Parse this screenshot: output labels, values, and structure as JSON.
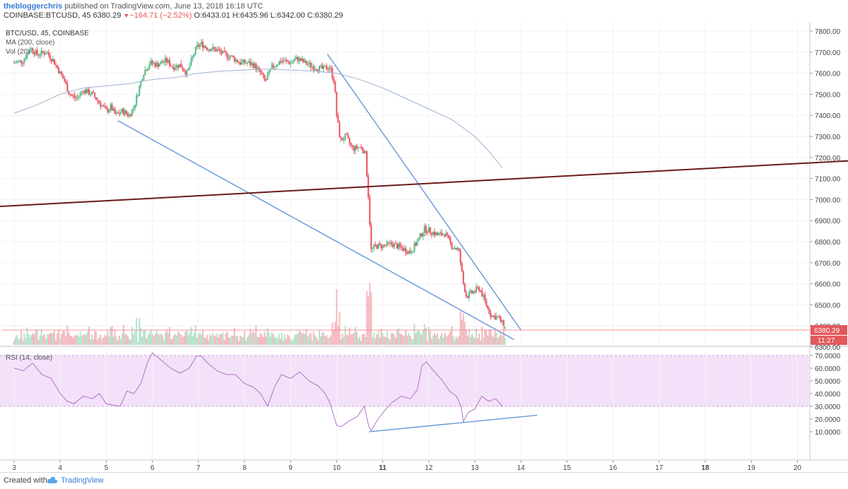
{
  "header": {
    "author": "thebloggerchris",
    "published": "published on TradingView.com, June 13, 2018 16:18 UTC",
    "symbol_line": "COINBASE:BTCUSD, 45",
    "last": "6380.29",
    "change_symbol": "▼",
    "change": "−164.71 (−2.52%)",
    "ohlc": "O:6433.01 H:6435.96 L:6342.00 C:6380.29"
  },
  "footer": {
    "created_with": "Created with",
    "brand": "TradingView",
    "logo_icon": "tradingview-cloud-icon"
  },
  "chart_data": [
    {
      "type": "candlestick",
      "title": "BTC/USD, 45, COINBASE",
      "indicators": [
        "MA (200, close)",
        "Vol (20)"
      ],
      "x_ticks": [
        "3",
        "4",
        "5",
        "6",
        "7",
        "8",
        "9",
        "10",
        "11",
        "12",
        "13",
        "14",
        "15",
        "16",
        "17",
        "18",
        "19",
        "20"
      ],
      "bold_ticks": [
        "11",
        "18"
      ],
      "ylim": [
        6250,
        7850
      ],
      "y_ticks": [
        "6300.00",
        "6400.00",
        "6500.00",
        "6600.00",
        "6700.00",
        "6800.00",
        "6900.00",
        "7000.00",
        "7100.00",
        "7200.00",
        "7300.00",
        "7400.00",
        "7500.00",
        "7600.00",
        "7700.00",
        "7800.00"
      ],
      "last_price": "6380.29",
      "countdown": "11:27",
      "colors": {
        "up": "#53b987",
        "down": "#eb4d5c",
        "ma": "#9fb3d1",
        "trend": "#5b8fd9",
        "hline": "#6b1a1a"
      },
      "close_path": [
        [
          3.0,
          7650
        ],
        [
          3.2,
          7660
        ],
        [
          3.35,
          7720
        ],
        [
          3.5,
          7690
        ],
        [
          3.7,
          7700
        ],
        [
          3.85,
          7660
        ],
        [
          4.0,
          7600
        ],
        [
          4.1,
          7560
        ],
        [
          4.2,
          7500
        ],
        [
          4.35,
          7480
        ],
        [
          4.5,
          7520
        ],
        [
          4.7,
          7500
        ],
        [
          4.85,
          7460
        ],
        [
          5.0,
          7420
        ],
        [
          5.1,
          7440
        ],
        [
          5.2,
          7400
        ],
        [
          5.35,
          7420
        ],
        [
          5.5,
          7400
        ],
        [
          5.6,
          7440
        ],
        [
          5.7,
          7520
        ],
        [
          5.8,
          7600
        ],
        [
          5.95,
          7650
        ],
        [
          6.1,
          7640
        ],
        [
          6.3,
          7660
        ],
        [
          6.45,
          7630
        ],
        [
          6.6,
          7640
        ],
        [
          6.75,
          7600
        ],
        [
          6.85,
          7660
        ],
        [
          6.95,
          7720
        ],
        [
          7.05,
          7740
        ],
        [
          7.2,
          7720
        ],
        [
          7.4,
          7710
        ],
        [
          7.55,
          7690
        ],
        [
          7.7,
          7680
        ],
        [
          7.9,
          7650
        ],
        [
          8.05,
          7650
        ],
        [
          8.2,
          7640
        ],
        [
          8.35,
          7600
        ],
        [
          8.45,
          7560
        ],
        [
          8.6,
          7630
        ],
        [
          8.8,
          7660
        ],
        [
          9.0,
          7650
        ],
        [
          9.15,
          7670
        ],
        [
          9.3,
          7650
        ],
        [
          9.5,
          7630
        ],
        [
          9.7,
          7620
        ],
        [
          9.85,
          7630
        ],
        [
          9.95,
          7560
        ],
        [
          10.0,
          7400
        ],
        [
          10.08,
          7280
        ],
        [
          10.2,
          7300
        ],
        [
          10.35,
          7240
        ],
        [
          10.5,
          7250
        ],
        [
          10.62,
          7230
        ],
        [
          10.68,
          7050
        ],
        [
          10.75,
          6760
        ],
        [
          10.85,
          6780
        ],
        [
          11.0,
          6780
        ],
        [
          11.2,
          6790
        ],
        [
          11.4,
          6770
        ],
        [
          11.6,
          6750
        ],
        [
          11.75,
          6800
        ],
        [
          11.9,
          6860
        ],
        [
          12.05,
          6850
        ],
        [
          12.2,
          6830
        ],
        [
          12.35,
          6840
        ],
        [
          12.5,
          6780
        ],
        [
          12.65,
          6760
        ],
        [
          12.75,
          6600
        ],
        [
          12.82,
          6540
        ],
        [
          12.95,
          6560
        ],
        [
          13.1,
          6580
        ],
        [
          13.25,
          6500
        ],
        [
          13.35,
          6450
        ],
        [
          13.5,
          6440
        ],
        [
          13.6,
          6410
        ],
        [
          13.68,
          6380
        ]
      ],
      "ma_path": [
        [
          3.0,
          7410
        ],
        [
          3.5,
          7450
        ],
        [
          4.0,
          7500
        ],
        [
          4.5,
          7530
        ],
        [
          5.0,
          7540
        ],
        [
          5.5,
          7550
        ],
        [
          6.0,
          7570
        ],
        [
          6.5,
          7580
        ],
        [
          7.0,
          7600
        ],
        [
          7.5,
          7610
        ],
        [
          8.0,
          7615
        ],
        [
          8.5,
          7620
        ],
        [
          9.0,
          7615
        ],
        [
          9.5,
          7610
        ],
        [
          10.0,
          7600
        ],
        [
          10.5,
          7570
        ],
        [
          11.0,
          7530
        ],
        [
          11.5,
          7480
        ],
        [
          12.0,
          7430
        ],
        [
          12.5,
          7380
        ],
        [
          13.0,
          7300
        ],
        [
          13.3,
          7230
        ],
        [
          13.6,
          7150
        ]
      ],
      "trendlines": [
        [
          [
            5.25,
            7375
          ],
          [
            13.85,
            6335
          ]
        ],
        [
          [
            9.8,
            7690
          ],
          [
            14.0,
            6380
          ]
        ],
        [
          [
            2.5,
            6965
          ],
          [
            21.2,
            7185
          ]
        ]
      ]
    },
    {
      "type": "line",
      "title": "RSI (14, close)",
      "ylim": [
        7,
        74
      ],
      "band": [
        30,
        70
      ],
      "y_ticks": [
        "10.0000",
        "20.0000",
        "30.0000",
        "40.0000",
        "50.0000",
        "60.0000",
        "70.0000"
      ],
      "colors": {
        "line": "#b072c5",
        "band": "#f3e1f9",
        "trend": "#5b8fd9"
      },
      "values_path": [
        [
          3.0,
          60
        ],
        [
          3.2,
          58
        ],
        [
          3.4,
          64
        ],
        [
          3.6,
          55
        ],
        [
          3.8,
          52
        ],
        [
          4.0,
          40
        ],
        [
          4.15,
          34
        ],
        [
          4.3,
          32
        ],
        [
          4.5,
          38
        ],
        [
          4.7,
          36
        ],
        [
          4.85,
          40
        ],
        [
          5.0,
          32
        ],
        [
          5.15,
          31
        ],
        [
          5.3,
          30
        ],
        [
          5.45,
          42
        ],
        [
          5.6,
          40
        ],
        [
          5.75,
          48
        ],
        [
          5.9,
          65
        ],
        [
          6.0,
          72
        ],
        [
          6.2,
          66
        ],
        [
          6.4,
          60
        ],
        [
          6.6,
          56
        ],
        [
          6.8,
          60
        ],
        [
          6.95,
          69
        ],
        [
          7.05,
          70
        ],
        [
          7.2,
          64
        ],
        [
          7.4,
          58
        ],
        [
          7.6,
          55
        ],
        [
          7.8,
          55
        ],
        [
          8.0,
          48
        ],
        [
          8.2,
          45
        ],
        [
          8.35,
          40
        ],
        [
          8.5,
          30
        ],
        [
          8.65,
          45
        ],
        [
          8.8,
          55
        ],
        [
          9.0,
          52
        ],
        [
          9.2,
          57
        ],
        [
          9.4,
          50
        ],
        [
          9.6,
          46
        ],
        [
          9.75,
          40
        ],
        [
          9.85,
          33
        ],
        [
          10.0,
          15
        ],
        [
          10.1,
          14
        ],
        [
          10.25,
          18
        ],
        [
          10.45,
          22
        ],
        [
          10.6,
          30
        ],
        [
          10.7,
          14
        ],
        [
          10.75,
          11
        ],
        [
          10.9,
          20
        ],
        [
          11.05,
          27
        ],
        [
          11.2,
          33
        ],
        [
          11.4,
          38
        ],
        [
          11.6,
          36
        ],
        [
          11.75,
          43
        ],
        [
          11.85,
          62
        ],
        [
          11.95,
          65
        ],
        [
          12.1,
          58
        ],
        [
          12.3,
          50
        ],
        [
          12.45,
          42
        ],
        [
          12.6,
          38
        ],
        [
          12.7,
          30
        ],
        [
          12.75,
          18
        ],
        [
          12.85,
          25
        ],
        [
          13.0,
          28
        ],
        [
          13.15,
          38
        ],
        [
          13.3,
          34
        ],
        [
          13.45,
          36
        ],
        [
          13.6,
          30
        ]
      ],
      "trendline": [
        [
          10.7,
          10
        ],
        [
          14.35,
          23
        ]
      ]
    }
  ]
}
